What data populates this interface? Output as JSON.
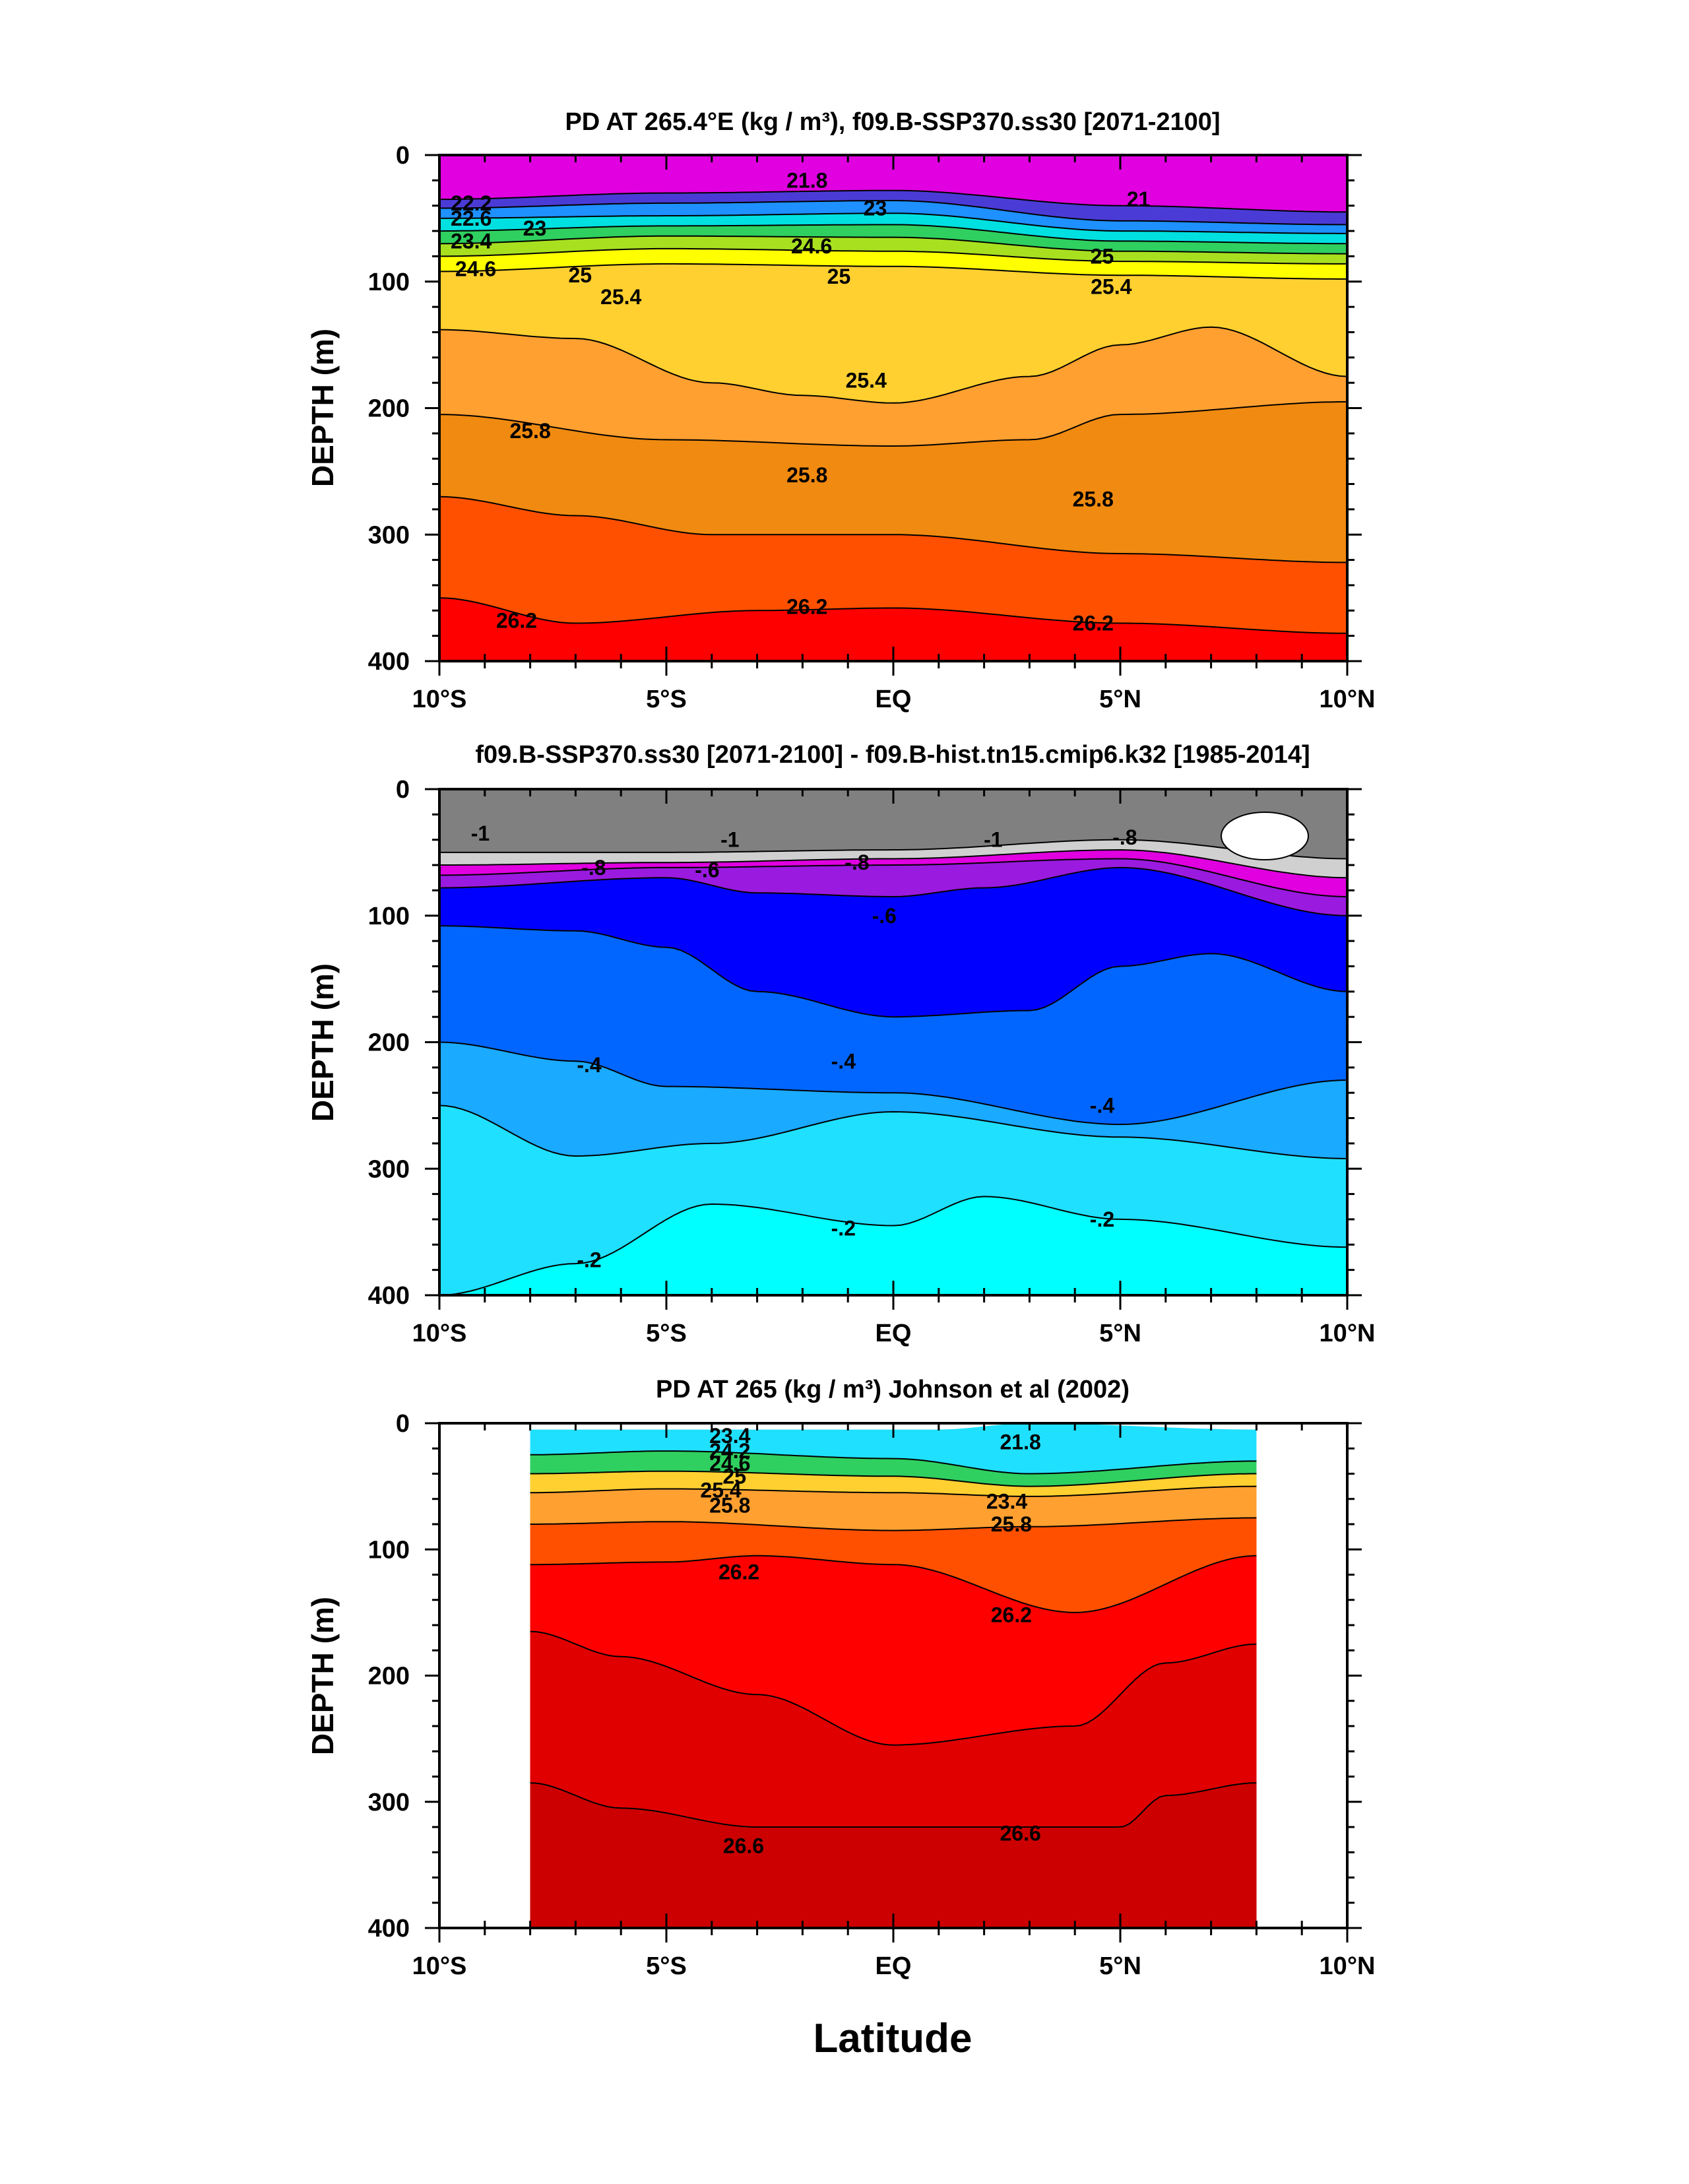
{
  "figure": {
    "xlabel": "Latitude",
    "x_ticks": [
      "10°S",
      "5°S",
      "EQ",
      "5°N",
      "10°N"
    ],
    "y_ticks": [
      "0",
      "100",
      "200",
      "300",
      "400"
    ],
    "ylabel": "DEPTH (m)"
  },
  "chart_data": [
    {
      "type": "contour",
      "title": "PD AT 265.4°E (kg / m³), f09.B-SSP370.ss30 [2071-2100]",
      "xlabel": "Latitude",
      "ylabel": "DEPTH (m)",
      "xlim": [
        -10,
        10
      ],
      "ylim": [
        400,
        0
      ],
      "bands": [
        {
          "below_depth": [
            [
              -10,
              0
            ],
            [
              10,
              0
            ]
          ],
          "color": "#e000e0"
        },
        {
          "below_depth": [
            [
              -10,
              35
            ],
            [
              -5,
              30
            ],
            [
              0,
              28
            ],
            [
              5,
              40
            ],
            [
              10,
              45
            ]
          ],
          "color": "#4b3bd6"
        },
        {
          "below_depth": [
            [
              -10,
              42
            ],
            [
              -5,
              38
            ],
            [
              0,
              36
            ],
            [
              5,
              52
            ],
            [
              10,
              55
            ]
          ],
          "color": "#1e90ff"
        },
        {
          "below_depth": [
            [
              -10,
              50
            ],
            [
              -5,
              48
            ],
            [
              0,
              46
            ],
            [
              5,
              60
            ],
            [
              10,
              62
            ]
          ],
          "color": "#00e0e0"
        },
        {
          "below_depth": [
            [
              -10,
              60
            ],
            [
              -5,
              56
            ],
            [
              0,
              55
            ],
            [
              5,
              68
            ],
            [
              10,
              70
            ]
          ],
          "color": "#2fd060"
        },
        {
          "below_depth": [
            [
              -10,
              70
            ],
            [
              -5,
              64
            ],
            [
              0,
              65
            ],
            [
              5,
              76
            ],
            [
              10,
              78
            ]
          ],
          "color": "#a8e020"
        },
        {
          "below_depth": [
            [
              -10,
              80
            ],
            [
              -5,
              74
            ],
            [
              0,
              76
            ],
            [
              5,
              84
            ],
            [
              10,
              86
            ]
          ],
          "color": "#ffff00"
        },
        {
          "below_depth": [
            [
              -10,
              92
            ],
            [
              -5,
              86
            ],
            [
              0,
              88
            ],
            [
              5,
              95
            ],
            [
              10,
              98
            ]
          ],
          "color": "#ffd030"
        },
        {
          "below_depth": [
            [
              -10,
              138
            ],
            [
              -7,
              145
            ],
            [
              -4,
              180
            ],
            [
              -2,
              190
            ],
            [
              0,
              196
            ],
            [
              3,
              175
            ],
            [
              5,
              150
            ],
            [
              7,
              136
            ],
            [
              10,
              175
            ]
          ],
          "color": "#ffa030"
        },
        {
          "below_depth": [
            [
              -10,
              205
            ],
            [
              -5,
              225
            ],
            [
              0,
              230
            ],
            [
              3,
              225
            ],
            [
              5,
              205
            ],
            [
              10,
              195
            ]
          ],
          "color": "#f08a10"
        },
        {
          "below_depth": [
            [
              -10,
              270
            ],
            [
              -7,
              285
            ],
            [
              -4,
              300
            ],
            [
              0,
              300
            ],
            [
              5,
              315
            ],
            [
              10,
              322
            ]
          ],
          "color": "#ff5000"
        },
        {
          "below_depth": [
            [
              -10,
              350
            ],
            [
              -7,
              370
            ],
            [
              -3,
              360
            ],
            [
              0,
              358
            ],
            [
              5,
              370
            ],
            [
              10,
              378
            ]
          ],
          "color": "#ff0000"
        }
      ],
      "contour_labels": [
        {
          "text": "22.2",
          "lat": -9.3,
          "depth": 38
        },
        {
          "text": "22.6",
          "lat": -9.3,
          "depth": 50
        },
        {
          "text": "23",
          "lat": -7.9,
          "depth": 58
        },
        {
          "text": "23.4",
          "lat": -9.3,
          "depth": 68
        },
        {
          "text": "24.6",
          "lat": -9.2,
          "depth": 90
        },
        {
          "text": "25",
          "lat": -6.9,
          "depth": 95
        },
        {
          "text": "25.4",
          "lat": -6.0,
          "depth": 112
        },
        {
          "text": "21.8",
          "lat": -1.9,
          "depth": 20
        },
        {
          "text": "23",
          "lat": -0.4,
          "depth": 42
        },
        {
          "text": "24.6",
          "lat": -1.8,
          "depth": 72
        },
        {
          "text": "25",
          "lat": -1.2,
          "depth": 96
        },
        {
          "text": "21",
          "lat": 5.4,
          "depth": 35
        },
        {
          "text": "25",
          "lat": 4.6,
          "depth": 80
        },
        {
          "text": "25.4",
          "lat": 4.8,
          "depth": 104
        },
        {
          "text": "25.4",
          "lat": -0.6,
          "depth": 178
        },
        {
          "text": "25.8",
          "lat": -8.0,
          "depth": 218
        },
        {
          "text": "25.8",
          "lat": -1.9,
          "depth": 253
        },
        {
          "text": "25.8",
          "lat": 4.4,
          "depth": 272
        },
        {
          "text": "26.2",
          "lat": -8.3,
          "depth": 368
        },
        {
          "text": "26.2",
          "lat": -1.9,
          "depth": 357
        },
        {
          "text": "26.2",
          "lat": 4.4,
          "depth": 370
        }
      ]
    },
    {
      "type": "contour",
      "title": "f09.B-SSP370.ss30 [2071-2100] - f09.B-hist.tn15.cmip6.k32 [1985-2014]",
      "xlabel": "Latitude",
      "ylabel": "DEPTH (m)",
      "xlim": [
        -10,
        10
      ],
      "ylim": [
        400,
        0
      ],
      "bands": [
        {
          "below_depth": [
            [
              -10,
              0
            ],
            [
              10,
              0
            ]
          ],
          "color": "#808080"
        },
        {
          "below_depth": [
            [
              -10,
              50
            ],
            [
              -5,
              50
            ],
            [
              0,
              48
            ],
            [
              5,
              40
            ],
            [
              10,
              55
            ]
          ],
          "color": "#d0d0d0"
        },
        {
          "below_depth": [
            [
              -10,
              60
            ],
            [
              -5,
              58
            ],
            [
              0,
              55
            ],
            [
              5,
              48
            ],
            [
              10,
              70
            ]
          ],
          "color": "#e000e0"
        },
        {
          "below_depth": [
            [
              -10,
              68
            ],
            [
              -5,
              62
            ],
            [
              0,
              60
            ],
            [
              5,
              55
            ],
            [
              10,
              85
            ]
          ],
          "color": "#9a1ae0"
        },
        {
          "below_depth": [
            [
              -10,
              78
            ],
            [
              -5,
              70
            ],
            [
              -3,
              82
            ],
            [
              0,
              85
            ],
            [
              2,
              78
            ],
            [
              5,
              62
            ],
            [
              10,
              100
            ]
          ],
          "color": "#0000ff"
        },
        {
          "below_depth": [
            [
              -10,
              108
            ],
            [
              -7,
              112
            ],
            [
              -5,
              125
            ],
            [
              -3,
              160
            ],
            [
              0,
              180
            ],
            [
              3,
              175
            ],
            [
              5,
              140
            ],
            [
              7,
              130
            ],
            [
              10,
              160
            ]
          ],
          "color": "#0066ff"
        },
        {
          "below_depth": [
            [
              -10,
              200
            ],
            [
              -7,
              215
            ],
            [
              -5,
              235
            ],
            [
              0,
              240
            ],
            [
              5,
              265
            ],
            [
              10,
              230
            ]
          ],
          "color": "#1aaaff"
        },
        {
          "below_depth": [
            [
              -10,
              250
            ],
            [
              -7,
              290
            ],
            [
              -4,
              280
            ],
            [
              0,
              255
            ],
            [
              5,
              275
            ],
            [
              10,
              292
            ]
          ],
          "color": "#1fe0ff"
        },
        {
          "below_depth": [
            [
              -10,
              400
            ],
            [
              -7,
              375
            ],
            [
              -4,
              328
            ],
            [
              0,
              345
            ],
            [
              2,
              322
            ],
            [
              5,
              340
            ],
            [
              10,
              362
            ]
          ],
          "color": "#00ffff"
        }
      ],
      "contour_labels": [
        {
          "text": "-1",
          "lat": -9.1,
          "depth": 35
        },
        {
          "text": "-.8",
          "lat": -6.6,
          "depth": 62
        },
        {
          "text": "-.6",
          "lat": -4.1,
          "depth": 64
        },
        {
          "text": "-1",
          "lat": -3.6,
          "depth": 40
        },
        {
          "text": "-.8",
          "lat": -0.8,
          "depth": 58
        },
        {
          "text": "-1",
          "lat": 2.2,
          "depth": 40
        },
        {
          "text": "-.6",
          "lat": -0.2,
          "depth": 100
        },
        {
          "text": "-.8",
          "lat": 5.1,
          "depth": 38
        },
        {
          "text": "-.4",
          "lat": -6.7,
          "depth": 218
        },
        {
          "text": "-.4",
          "lat": -1.1,
          "depth": 215
        },
        {
          "text": "-.4",
          "lat": 4.6,
          "depth": 250
        },
        {
          "text": "-.2",
          "lat": -6.7,
          "depth": 372
        },
        {
          "text": "-.2",
          "lat": -1.1,
          "depth": 347
        },
        {
          "text": "-.2",
          "lat": 4.6,
          "depth": 340
        }
      ]
    },
    {
      "type": "contour",
      "title": "PD AT 265 (kg / m³) Johnson et al (2002)",
      "xlabel": "Latitude",
      "ylabel": "DEPTH (m)",
      "xlim": [
        -10,
        10
      ],
      "ylim": [
        400,
        0
      ],
      "data_lat_range": [
        -8,
        8
      ],
      "bands": [
        {
          "below_depth": [
            [
              -8,
              5
            ],
            [
              1,
              5
            ],
            [
              3,
              0
            ],
            [
              8,
              5
            ]
          ],
          "color": "#20e0ff"
        },
        {
          "below_depth": [
            [
              -8,
              25
            ],
            [
              -5,
              22
            ],
            [
              0,
              28
            ],
            [
              3,
              40
            ],
            [
              8,
              30
            ]
          ],
          "color": "#2fd060"
        },
        {
          "below_depth": [
            [
              -8,
              40
            ],
            [
              -5,
              38
            ],
            [
              0,
              42
            ],
            [
              3,
              50
            ],
            [
              8,
              40
            ]
          ],
          "color": "#ffd030"
        },
        {
          "below_depth": [
            [
              -8,
              55
            ],
            [
              -5,
              52
            ],
            [
              0,
              55
            ],
            [
              3,
              58
            ],
            [
              8,
              50
            ]
          ],
          "color": "#ffa030"
        },
        {
          "below_depth": [
            [
              -8,
              80
            ],
            [
              -5,
              78
            ],
            [
              0,
              85
            ],
            [
              3,
              82
            ],
            [
              8,
              75
            ]
          ],
          "color": "#ff5000"
        },
        {
          "below_depth": [
            [
              -8,
              112
            ],
            [
              -5,
              110
            ],
            [
              -3,
              105
            ],
            [
              0,
              112
            ],
            [
              4,
              150
            ],
            [
              8,
              105
            ]
          ],
          "color": "#ff0000"
        },
        {
          "below_depth": [
            [
              -8,
              165
            ],
            [
              -6,
              185
            ],
            [
              -3,
              215
            ],
            [
              0,
              255
            ],
            [
              4,
              240
            ],
            [
              6,
              190
            ],
            [
              8,
              175
            ]
          ],
          "color": "#e00000"
        },
        {
          "below_depth": [
            [
              -8,
              285
            ],
            [
              -6,
              305
            ],
            [
              -3,
              320
            ],
            [
              0,
              320
            ],
            [
              3,
              320
            ],
            [
              5,
              320
            ],
            [
              6,
              295
            ],
            [
              8,
              285
            ]
          ],
          "color": "#cc0000"
        }
      ],
      "contour_labels": [
        {
          "text": "23.4",
          "lat": -3.6,
          "depth": 10
        },
        {
          "text": "24.2",
          "lat": -3.6,
          "depth": 22
        },
        {
          "text": "24.6",
          "lat": -3.6,
          "depth": 32
        },
        {
          "text": "25",
          "lat": -3.5,
          "depth": 42
        },
        {
          "text": "25.4",
          "lat": -3.8,
          "depth": 53
        },
        {
          "text": "25.8",
          "lat": -3.6,
          "depth": 65
        },
        {
          "text": "21.8",
          "lat": 2.8,
          "depth": 15
        },
        {
          "text": "23.4",
          "lat": 2.5,
          "depth": 62
        },
        {
          "text": "25.8",
          "lat": 2.6,
          "depth": 80
        },
        {
          "text": "26.2",
          "lat": -3.4,
          "depth": 118
        },
        {
          "text": "26.2",
          "lat": 2.6,
          "depth": 152
        },
        {
          "text": "26.6",
          "lat": -3.3,
          "depth": 335
        },
        {
          "text": "26.6",
          "lat": 2.8,
          "depth": 325
        }
      ]
    }
  ]
}
